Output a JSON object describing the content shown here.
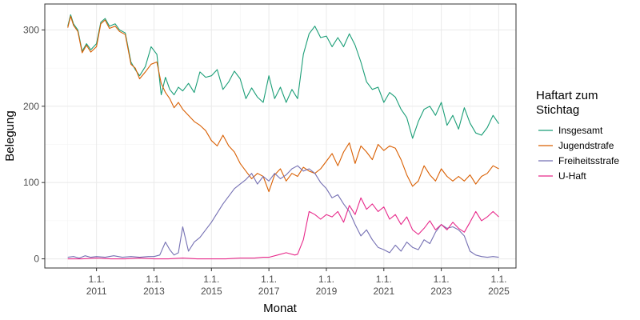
{
  "chart_data": {
    "type": "line",
    "title": "",
    "xlabel": "Monat",
    "ylabel": "Belegung",
    "ylim": [
      -12,
      334
    ],
    "xlim": [
      2009.2,
      2025.6
    ],
    "y_ticks": [
      0,
      100,
      200,
      300
    ],
    "x_ticks": [
      {
        "value": 2011,
        "line1": "1.1.",
        "line2": "2011"
      },
      {
        "value": 2013,
        "line1": "1.1.",
        "line2": "2013"
      },
      {
        "value": 2015,
        "line1": "1.1.",
        "line2": "2015"
      },
      {
        "value": 2017,
        "line1": "1.1.",
        "line2": "2017"
      },
      {
        "value": 2019,
        "line1": "1.1.",
        "line2": "2019"
      },
      {
        "value": 2021,
        "line1": "1.1.",
        "line2": "2021"
      },
      {
        "value": 2023,
        "line1": "1.1.",
        "line2": "2023"
      },
      {
        "value": 2025,
        "line1": "1.1.",
        "line2": "2025"
      }
    ],
    "legend": {
      "title_line1": "Haftart zum",
      "title_line2": "Stichtag",
      "position": "right"
    },
    "series": [
      {
        "name": "Insgesamt",
        "color": "#1B9E77",
        "x": [
          2010.0,
          2010.1,
          2010.2,
          2010.35,
          2010.5,
          2010.65,
          2010.8,
          2011.0,
          2011.15,
          2011.3,
          2011.45,
          2011.65,
          2011.8,
          2012.0,
          2012.2,
          2012.35,
          2012.5,
          2012.7,
          2012.9,
          2013.1,
          2013.25,
          2013.4,
          2013.55,
          2013.7,
          2013.85,
          2014.0,
          2014.2,
          2014.4,
          2014.6,
          2014.8,
          2015.0,
          2015.2,
          2015.4,
          2015.6,
          2015.8,
          2016.0,
          2016.2,
          2016.4,
          2016.6,
          2016.8,
          2017.0,
          2017.2,
          2017.4,
          2017.6,
          2017.8,
          2018.0,
          2018.2,
          2018.4,
          2018.6,
          2018.8,
          2019.0,
          2019.2,
          2019.4,
          2019.6,
          2019.8,
          2020.0,
          2020.2,
          2020.4,
          2020.6,
          2020.8,
          2021.0,
          2021.2,
          2021.4,
          2021.6,
          2021.8,
          2022.0,
          2022.2,
          2022.4,
          2022.6,
          2022.8,
          2023.0,
          2023.2,
          2023.4,
          2023.6,
          2023.8,
          2024.0,
          2024.2,
          2024.4,
          2024.6,
          2024.8,
          2025.0
        ],
        "y": [
          305,
          320,
          308,
          300,
          272,
          282,
          274,
          282,
          310,
          315,
          305,
          308,
          300,
          296,
          258,
          248,
          240,
          252,
          278,
          268,
          215,
          238,
          222,
          215,
          225,
          220,
          230,
          218,
          245,
          238,
          240,
          248,
          222,
          232,
          246,
          236,
          210,
          224,
          212,
          205,
          240,
          210,
          225,
          205,
          222,
          210,
          268,
          295,
          305,
          290,
          292,
          278,
          290,
          278,
          295,
          280,
          258,
          232,
          222,
          225,
          205,
          218,
          212,
          196,
          185,
          158,
          180,
          196,
          200,
          188,
          205,
          175,
          188,
          170,
          198,
          178,
          165,
          162,
          172,
          188,
          177
        ]
      },
      {
        "name": "Jugendstrafe",
        "color": "#D95F02",
        "x": [
          2010.0,
          2010.1,
          2010.2,
          2010.35,
          2010.5,
          2010.65,
          2010.8,
          2011.0,
          2011.15,
          2011.3,
          2011.45,
          2011.65,
          2011.8,
          2012.0,
          2012.2,
          2012.35,
          2012.5,
          2012.7,
          2012.9,
          2013.1,
          2013.25,
          2013.4,
          2013.55,
          2013.7,
          2013.85,
          2014.0,
          2014.2,
          2014.4,
          2014.6,
          2014.8,
          2015.0,
          2015.2,
          2015.4,
          2015.6,
          2015.8,
          2016.0,
          2016.2,
          2016.4,
          2016.6,
          2016.8,
          2017.0,
          2017.2,
          2017.4,
          2017.6,
          2017.8,
          2018.0,
          2018.2,
          2018.4,
          2018.6,
          2018.8,
          2019.0,
          2019.2,
          2019.4,
          2019.6,
          2019.8,
          2020.0,
          2020.2,
          2020.4,
          2020.6,
          2020.8,
          2021.0,
          2021.2,
          2021.4,
          2021.6,
          2021.8,
          2022.0,
          2022.2,
          2022.4,
          2022.6,
          2022.8,
          2023.0,
          2023.2,
          2023.4,
          2023.6,
          2023.8,
          2024.0,
          2024.2,
          2024.4,
          2024.6,
          2024.8,
          2025.0
        ],
        "y": [
          303,
          318,
          306,
          298,
          270,
          280,
          271,
          278,
          308,
          313,
          302,
          305,
          298,
          294,
          255,
          250,
          236,
          245,
          255,
          258,
          230,
          218,
          210,
          198,
          205,
          196,
          188,
          180,
          175,
          168,
          155,
          148,
          162,
          148,
          140,
          125,
          115,
          105,
          112,
          108,
          88,
          110,
          118,
          102,
          112,
          108,
          120,
          115,
          112,
          118,
          128,
          138,
          122,
          140,
          152,
          125,
          148,
          140,
          130,
          150,
          142,
          148,
          145,
          130,
          110,
          95,
          102,
          122,
          110,
          102,
          118,
          108,
          102,
          108,
          102,
          110,
          98,
          108,
          112,
          122,
          118
        ]
      },
      {
        "name": "Freiheitsstrafe",
        "color": "#7570B3",
        "x": [
          2010.0,
          2010.2,
          2010.4,
          2010.6,
          2010.8,
          2011.0,
          2011.3,
          2011.6,
          2011.9,
          2012.2,
          2012.5,
          2012.8,
          2013.0,
          2013.2,
          2013.4,
          2013.55,
          2013.7,
          2013.85,
          2014.0,
          2014.2,
          2014.4,
          2014.6,
          2014.8,
          2015.0,
          2015.2,
          2015.4,
          2015.6,
          2015.8,
          2016.0,
          2016.2,
          2016.4,
          2016.6,
          2016.8,
          2017.0,
          2017.2,
          2017.4,
          2017.6,
          2017.8,
          2018.0,
          2018.2,
          2018.4,
          2018.6,
          2018.8,
          2019.0,
          2019.2,
          2019.4,
          2019.6,
          2019.8,
          2020.0,
          2020.2,
          2020.4,
          2020.6,
          2020.8,
          2021.0,
          2021.2,
          2021.4,
          2021.6,
          2021.8,
          2022.0,
          2022.2,
          2022.4,
          2022.6,
          2022.8,
          2023.0,
          2023.2,
          2023.4,
          2023.6,
          2023.8,
          2024.0,
          2024.2,
          2024.4,
          2024.6,
          2024.8,
          2025.0
        ],
        "y": [
          2,
          3,
          1,
          4,
          2,
          3,
          2,
          4,
          2,
          3,
          2,
          3,
          3,
          5,
          22,
          12,
          5,
          8,
          42,
          10,
          22,
          28,
          38,
          48,
          60,
          72,
          82,
          92,
          98,
          104,
          112,
          98,
          108,
          102,
          112,
          105,
          110,
          118,
          122,
          115,
          118,
          112,
          100,
          92,
          80,
          84,
          72,
          62,
          45,
          30,
          38,
          25,
          15,
          12,
          8,
          18,
          10,
          22,
          15,
          12,
          25,
          20,
          35,
          45,
          40,
          42,
          38,
          30,
          10,
          5,
          3,
          2,
          3,
          2
        ]
      },
      {
        "name": "U-Haft",
        "color": "#E7298A",
        "x": [
          2010.0,
          2010.5,
          2011.0,
          2011.5,
          2012.0,
          2012.5,
          2013.0,
          2013.5,
          2014.0,
          2014.5,
          2015.0,
          2015.5,
          2016.0,
          2016.5,
          2016.8,
          2017.0,
          2017.3,
          2017.6,
          2017.9,
          2018.0,
          2018.2,
          2018.4,
          2018.6,
          2018.8,
          2019.0,
          2019.2,
          2019.4,
          2019.6,
          2019.8,
          2020.0,
          2020.2,
          2020.4,
          2020.6,
          2020.8,
          2021.0,
          2021.2,
          2021.4,
          2021.6,
          2021.8,
          2022.0,
          2022.2,
          2022.4,
          2022.6,
          2022.8,
          2023.0,
          2023.2,
          2023.4,
          2023.6,
          2023.8,
          2024.0,
          2024.2,
          2024.4,
          2024.6,
          2024.8,
          2025.0
        ],
        "y": [
          0,
          0,
          1,
          0,
          0,
          1,
          0,
          0,
          1,
          0,
          0,
          0,
          1,
          1,
          2,
          2,
          5,
          8,
          5,
          6,
          25,
          62,
          58,
          52,
          58,
          55,
          62,
          48,
          70,
          58,
          80,
          65,
          72,
          62,
          68,
          52,
          58,
          45,
          55,
          38,
          32,
          40,
          50,
          38,
          45,
          38,
          48,
          40,
          35,
          48,
          62,
          50,
          55,
          62,
          55
        ]
      }
    ]
  }
}
